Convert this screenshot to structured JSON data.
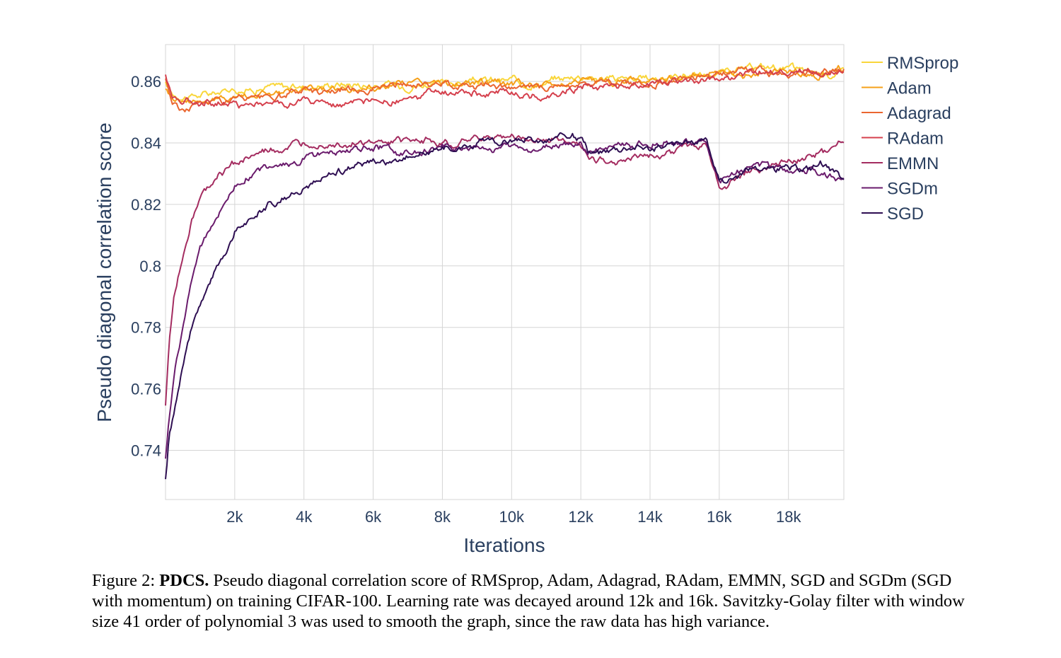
{
  "chart_data": {
    "type": "line",
    "xlabel": "Iterations",
    "ylabel": "Pseudo diagonal correlation score",
    "xlim": [
      0,
      19600
    ],
    "ylim": [
      0.724,
      0.872
    ],
    "x_ticks": [
      2000,
      4000,
      6000,
      8000,
      10000,
      12000,
      14000,
      16000,
      18000
    ],
    "x_tick_labels": [
      "2k",
      "4k",
      "6k",
      "8k",
      "10k",
      "12k",
      "14k",
      "16k",
      "18k"
    ],
    "y_ticks": [
      0.74,
      0.76,
      0.78,
      0.8,
      0.82,
      0.84,
      0.86
    ],
    "y_tick_labels": [
      "0.74",
      "0.76",
      "0.78",
      "0.8",
      "0.82",
      "0.84",
      "0.86"
    ],
    "grid": true,
    "legend_position": "right",
    "series": [
      {
        "name": "RMSprop",
        "color": "#f9d63b",
        "x": [
          0,
          200,
          500,
          1000,
          1500,
          2000,
          3000,
          4000,
          5000,
          6000,
          7000,
          8000,
          9000,
          10000,
          11000,
          12000,
          13000,
          14000,
          15000,
          16000,
          17000,
          18000,
          19000,
          19600
        ],
        "y": [
          0.859,
          0.856,
          0.855,
          0.856,
          0.856,
          0.857,
          0.858,
          0.858,
          0.859,
          0.859,
          0.859,
          0.86,
          0.86,
          0.86,
          0.86,
          0.862,
          0.861,
          0.861,
          0.862,
          0.862,
          0.863,
          0.864,
          0.863,
          0.864
        ]
      },
      {
        "name": "Adam",
        "color": "#f6a01a",
        "x": [
          0,
          200,
          500,
          1000,
          1500,
          2000,
          3000,
          4000,
          5000,
          6000,
          7000,
          8000,
          9000,
          10000,
          11000,
          12000,
          13000,
          14000,
          15000,
          16000,
          17000,
          18000,
          19000,
          19600
        ],
        "y": [
          0.858,
          0.855,
          0.854,
          0.854,
          0.854,
          0.855,
          0.856,
          0.857,
          0.858,
          0.859,
          0.859,
          0.859,
          0.859,
          0.859,
          0.859,
          0.861,
          0.86,
          0.861,
          0.861,
          0.862,
          0.862,
          0.863,
          0.862,
          0.864
        ]
      },
      {
        "name": "Adagrad",
        "color": "#ea6630",
        "x": [
          0,
          200,
          500,
          1000,
          1500,
          2000,
          3000,
          4000,
          5000,
          6000,
          7000,
          8000,
          9000,
          10000,
          11000,
          12000,
          13000,
          14000,
          15000,
          16000,
          17000,
          18000,
          19000,
          19600
        ],
        "y": [
          0.861,
          0.853,
          0.851,
          0.853,
          0.854,
          0.855,
          0.856,
          0.857,
          0.857,
          0.858,
          0.858,
          0.858,
          0.858,
          0.858,
          0.858,
          0.86,
          0.86,
          0.86,
          0.861,
          0.862,
          0.863,
          0.862,
          0.862,
          0.864
        ]
      },
      {
        "name": "RAdam",
        "color": "#d5404d",
        "x": [
          0,
          200,
          500,
          1000,
          1500,
          2000,
          3000,
          4000,
          5000,
          6000,
          7000,
          8000,
          9000,
          10000,
          11000,
          12000,
          13000,
          14000,
          15000,
          16000,
          17000,
          18000,
          19000,
          19600
        ],
        "y": [
          0.862,
          0.855,
          0.854,
          0.853,
          0.853,
          0.853,
          0.852,
          0.853,
          0.853,
          0.854,
          0.855,
          0.856,
          0.856,
          0.856,
          0.855,
          0.859,
          0.859,
          0.859,
          0.86,
          0.861,
          0.862,
          0.862,
          0.863,
          0.864
        ]
      },
      {
        "name": "EMMN",
        "color": "#a42c60",
        "x": [
          0,
          100,
          250,
          500,
          750,
          1000,
          1500,
          2000,
          2500,
          3000,
          4000,
          5000,
          6000,
          7000,
          8000,
          9000,
          10000,
          11000,
          12000,
          12200,
          13000,
          14000,
          15000,
          15600,
          16000,
          16300,
          17000,
          18000,
          19000,
          19600
        ],
        "y": [
          0.754,
          0.774,
          0.79,
          0.803,
          0.815,
          0.822,
          0.83,
          0.834,
          0.836,
          0.838,
          0.839,
          0.84,
          0.84,
          0.84,
          0.841,
          0.842,
          0.842,
          0.841,
          0.84,
          0.835,
          0.835,
          0.836,
          0.839,
          0.839,
          0.826,
          0.827,
          0.832,
          0.834,
          0.836,
          0.84
        ]
      },
      {
        "name": "SGDm",
        "color": "#6a1b6c",
        "x": [
          0,
          100,
          250,
          500,
          750,
          1000,
          1500,
          2000,
          2500,
          3000,
          4000,
          5000,
          6000,
          7000,
          8000,
          9000,
          10000,
          11000,
          11500,
          12000,
          12200,
          13000,
          14000,
          15000,
          15600,
          16000,
          16300,
          17000,
          18000,
          19000,
          19600
        ],
        "y": [
          0.738,
          0.75,
          0.765,
          0.78,
          0.796,
          0.806,
          0.817,
          0.826,
          0.83,
          0.833,
          0.835,
          0.837,
          0.838,
          0.837,
          0.838,
          0.839,
          0.838,
          0.84,
          0.842,
          0.84,
          0.837,
          0.839,
          0.84,
          0.84,
          0.84,
          0.828,
          0.829,
          0.833,
          0.832,
          0.831,
          0.828
        ]
      },
      {
        "name": "SGD",
        "color": "#2e0e52",
        "x": [
          0,
          100,
          250,
          500,
          750,
          1000,
          1500,
          2000,
          2500,
          3000,
          3500,
          4000,
          5000,
          6000,
          7000,
          8000,
          9000,
          10000,
          11000,
          11500,
          12000,
          12200,
          13000,
          14000,
          15000,
          15600,
          16000,
          16300,
          17000,
          18000,
          19000,
          19600
        ],
        "y": [
          0.731,
          0.744,
          0.752,
          0.766,
          0.778,
          0.787,
          0.799,
          0.81,
          0.815,
          0.82,
          0.822,
          0.826,
          0.83,
          0.834,
          0.835,
          0.838,
          0.839,
          0.841,
          0.84,
          0.843,
          0.842,
          0.837,
          0.839,
          0.839,
          0.839,
          0.841,
          0.827,
          0.828,
          0.833,
          0.832,
          0.834,
          0.828
        ]
      }
    ]
  },
  "caption": {
    "prefix": "Figure 2: ",
    "bold": "PDCS.",
    "text": " Pseudo diagonal correlation score of RMSprop, Adam, Adagrad, RAdam, EMMN, SGD and SGDm (SGD with momentum) on training CIFAR-100. Learning rate was decayed around 12k and 16k. Savitzky-Golay filter with window size 41 order of polynomial 3 was used to smooth the graph, since the raw data has high variance."
  }
}
